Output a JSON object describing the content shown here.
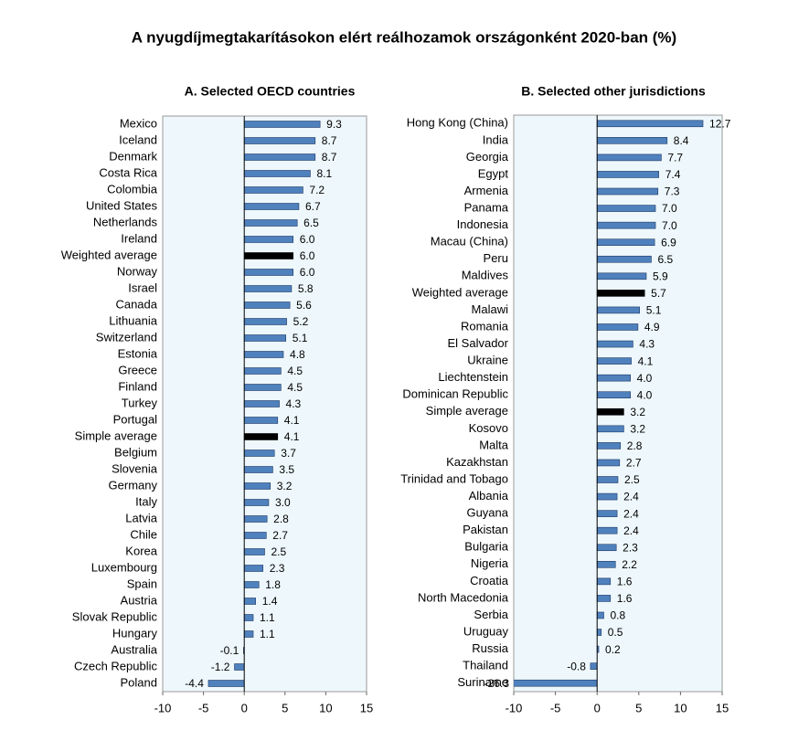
{
  "title": "A nyugdíjmegtakarításokon elért reálhozamok országonként 2020-ban (%)",
  "chart_data": [
    {
      "type": "barh",
      "title": "A. Selected OECD countries",
      "categories": [
        "Mexico",
        "Iceland",
        "Denmark",
        "Costa Rica",
        "Colombia",
        "United States",
        "Netherlands",
        "Ireland",
        "Weighted average",
        "Norway",
        "Israel",
        "Canada",
        "Lithuania",
        "Switzerland",
        "Estonia",
        "Greece",
        "Finland",
        "Turkey",
        "Portugal",
        "Simple average",
        "Belgium",
        "Slovenia",
        "Germany",
        "Italy",
        "Latvia",
        "Chile",
        "Korea",
        "Luxembourg",
        "Spain",
        "Austria",
        "Slovak Republic",
        "Hungary",
        "Australia",
        "Czech Republic",
        "Poland"
      ],
      "values": [
        9.3,
        8.7,
        8.7,
        8.1,
        7.2,
        6.7,
        6.5,
        6.0,
        6.0,
        6.0,
        5.8,
        5.6,
        5.2,
        5.1,
        4.8,
        4.5,
        4.5,
        4.3,
        4.1,
        4.1,
        3.7,
        3.5,
        3.2,
        3.0,
        2.8,
        2.7,
        2.5,
        2.3,
        1.8,
        1.4,
        1.1,
        1.1,
        -0.1,
        -1.2,
        -4.4
      ],
      "value_labels": [
        "9.3",
        "8.7",
        "8.7",
        "8.1",
        "7.2",
        "6.7",
        "6.5",
        "6.0",
        "6.0",
        "6.0",
        "5.8",
        "5.6",
        "5.2",
        "5.1",
        "4.8",
        "4.5",
        "4.5",
        "4.3",
        "4.1",
        "4.1",
        "3.7",
        "3.5",
        "3.2",
        "3.0",
        "2.8",
        "2.7",
        "2.5",
        "2.3",
        "1.8",
        "1.4",
        "1.1",
        "1.1",
        "-0.1",
        "-1.2",
        "-4.4"
      ],
      "colors": [
        "#4f81bd",
        "#4f81bd",
        "#4f81bd",
        "#4f81bd",
        "#4f81bd",
        "#4f81bd",
        "#4f81bd",
        "#4f81bd",
        "#000000",
        "#4f81bd",
        "#4f81bd",
        "#4f81bd",
        "#4f81bd",
        "#4f81bd",
        "#4f81bd",
        "#4f81bd",
        "#4f81bd",
        "#4f81bd",
        "#4f81bd",
        "#000000",
        "#4f81bd",
        "#4f81bd",
        "#4f81bd",
        "#4f81bd",
        "#4f81bd",
        "#4f81bd",
        "#4f81bd",
        "#4f81bd",
        "#4f81bd",
        "#4f81bd",
        "#4f81bd",
        "#4f81bd",
        "#4f81bd",
        "#4f81bd",
        "#4f81bd"
      ],
      "xlim": [
        -10,
        15
      ],
      "xticks": [
        -10,
        -5,
        0,
        5,
        10,
        15
      ]
    },
    {
      "type": "barh",
      "title": "B. Selected other jurisdictions",
      "categories": [
        "Hong Kong (China)",
        "India",
        "Georgia",
        "Egypt",
        "Armenia",
        "Panama",
        "Indonesia",
        "Macau (China)",
        "Peru",
        "Maldives",
        "Weighted average",
        "Malawi",
        "Romania",
        "El Salvador",
        "Ukraine",
        "Liechtenstein",
        "Dominican Republic",
        "Simple average",
        "Kosovo",
        "Malta",
        "Kazakhstan",
        "Trinidad and Tobago",
        "Albania",
        "Guyana",
        "Pakistan",
        "Bulgaria",
        "Nigeria",
        "Croatia",
        "North Macedonia",
        "Serbia",
        "Uruguay",
        "Russia",
        "Thailand",
        "Suriname"
      ],
      "values": [
        12.7,
        8.4,
        7.7,
        7.4,
        7.3,
        7.0,
        7.0,
        6.9,
        6.5,
        5.9,
        5.7,
        5.1,
        4.9,
        4.3,
        4.1,
        4.0,
        4.0,
        3.2,
        3.2,
        2.8,
        2.7,
        2.5,
        2.4,
        2.4,
        2.4,
        2.3,
        2.2,
        1.6,
        1.6,
        0.8,
        0.5,
        0.2,
        -0.8,
        -26.3
      ],
      "value_labels": [
        "12.7",
        "8.4",
        "7.7",
        "7.4",
        "7.3",
        "7.0",
        "7.0",
        "6.9",
        "6.5",
        "5.9",
        "5.7",
        "5.1",
        "4.9",
        "4.3",
        "4.1",
        "4.0",
        "4.0",
        "3.2",
        "3.2",
        "2.8",
        "2.7",
        "2.5",
        "2.4",
        "2.4",
        "2.4",
        "2.3",
        "2.2",
        "1.6",
        "1.6",
        "0.8",
        "0.5",
        "0.2",
        "-0.8",
        "-26.3"
      ],
      "colors": [
        "#4f81bd",
        "#4f81bd",
        "#4f81bd",
        "#4f81bd",
        "#4f81bd",
        "#4f81bd",
        "#4f81bd",
        "#4f81bd",
        "#4f81bd",
        "#4f81bd",
        "#000000",
        "#4f81bd",
        "#4f81bd",
        "#4f81bd",
        "#4f81bd",
        "#4f81bd",
        "#4f81bd",
        "#000000",
        "#4f81bd",
        "#4f81bd",
        "#4f81bd",
        "#4f81bd",
        "#4f81bd",
        "#4f81bd",
        "#4f81bd",
        "#4f81bd",
        "#4f81bd",
        "#4f81bd",
        "#4f81bd",
        "#4f81bd",
        "#4f81bd",
        "#4f81bd",
        "#4f81bd",
        "#4f81bd"
      ],
      "xlim": [
        -10,
        15
      ],
      "xticks": [
        -10,
        -5,
        0,
        5,
        10,
        15
      ]
    }
  ]
}
